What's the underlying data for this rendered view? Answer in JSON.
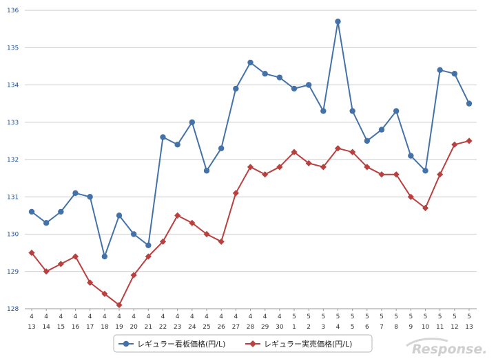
{
  "chart_data": {
    "type": "line",
    "title": "",
    "xlabel": "",
    "ylabel": "",
    "ylim": [
      128,
      136
    ],
    "y_ticks": [
      "128",
      "129",
      "130",
      "131",
      "132",
      "133",
      "134",
      "135",
      "136"
    ],
    "grid": true,
    "legend_position": "bottom-center",
    "categories": [
      {
        "month": "4",
        "day": "13"
      },
      {
        "month": "4",
        "day": "14"
      },
      {
        "month": "4",
        "day": "15"
      },
      {
        "month": "4",
        "day": "16"
      },
      {
        "month": "4",
        "day": "17"
      },
      {
        "month": "4",
        "day": "18"
      },
      {
        "month": "4",
        "day": "19"
      },
      {
        "month": "4",
        "day": "20"
      },
      {
        "month": "4",
        "day": "21"
      },
      {
        "month": "4",
        "day": "22"
      },
      {
        "month": "4",
        "day": "23"
      },
      {
        "month": "4",
        "day": "24"
      },
      {
        "month": "4",
        "day": "25"
      },
      {
        "month": "4",
        "day": "26"
      },
      {
        "month": "4",
        "day": "27"
      },
      {
        "month": "4",
        "day": "28"
      },
      {
        "month": "4",
        "day": "29"
      },
      {
        "month": "4",
        "day": "30"
      },
      {
        "month": "5",
        "day": "1"
      },
      {
        "month": "5",
        "day": "2"
      },
      {
        "month": "5",
        "day": "3"
      },
      {
        "month": "5",
        "day": "4"
      },
      {
        "month": "5",
        "day": "5"
      },
      {
        "month": "5",
        "day": "6"
      },
      {
        "month": "5",
        "day": "7"
      },
      {
        "month": "5",
        "day": "8"
      },
      {
        "month": "5",
        "day": "9"
      },
      {
        "month": "5",
        "day": "10"
      },
      {
        "month": "5",
        "day": "11"
      },
      {
        "month": "5",
        "day": "12"
      },
      {
        "month": "5",
        "day": "13"
      }
    ],
    "series": [
      {
        "name": "レギュラー看板価格(円/L)",
        "color": "#4472a8",
        "marker": "circle",
        "values": [
          130.6,
          130.3,
          130.6,
          131.1,
          131.0,
          129.4,
          130.5,
          130.0,
          129.7,
          132.6,
          132.4,
          133.0,
          131.7,
          132.3,
          133.9,
          134.6,
          134.3,
          134.2,
          133.9,
          134.0,
          133.3,
          135.7,
          133.3,
          132.5,
          132.8,
          133.3,
          132.1,
          131.7,
          134.4,
          134.3,
          133.5
        ]
      },
      {
        "name": "レギュラー実売価格(円/L)",
        "color": "#b8403f",
        "marker": "diamond",
        "values": [
          129.5,
          129.0,
          129.2,
          129.4,
          128.7,
          128.4,
          128.1,
          128.9,
          129.4,
          129.8,
          130.5,
          130.3,
          130.0,
          129.8,
          131.1,
          131.8,
          131.6,
          131.8,
          132.2,
          131.9,
          131.8,
          132.3,
          132.2,
          131.8,
          131.6,
          131.6,
          131.0,
          130.7,
          131.6,
          132.4,
          132.5
        ]
      }
    ]
  },
  "watermark": {
    "text": "Response.",
    "color": "#cfcfcf"
  }
}
